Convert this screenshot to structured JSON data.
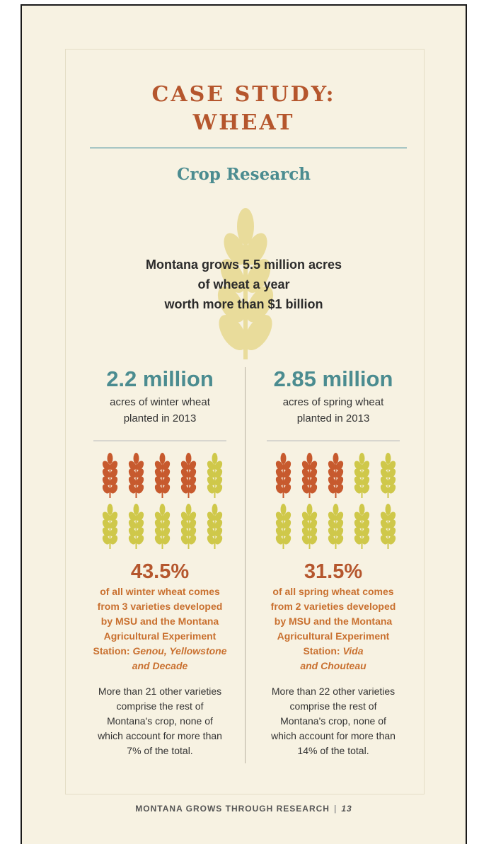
{
  "title": {
    "line1": "CASE STUDY:",
    "line2": "WHEAT"
  },
  "subtitle": "Crop Research",
  "intro": {
    "line1": "Montana grows 5.5 million acres",
    "line2": "of wheat a year",
    "line3": "worth more than $1 billion"
  },
  "winter": {
    "big": "2.2 million",
    "desc_line1": "acres of winter wheat",
    "desc_line2": "planted in 2013",
    "icons_highlighted": 4,
    "icons_total": 10,
    "pct": "43.5%",
    "pct_lines": [
      "of all winter wheat comes",
      "from 3 varieties developed",
      "by MSU and the Montana",
      "Agricultural Experiment"
    ],
    "station_label": "Station: ",
    "varieties_line1": "Genou, Yellowstone",
    "varieties_line2": "and Decade",
    "more_lines": [
      "More than 21 other varieties",
      "comprise the rest of",
      "Montana's crop, none of",
      "which account for more than",
      "7% of the total."
    ]
  },
  "spring": {
    "big": "2.85 million",
    "desc_line1": "acres of spring wheat",
    "desc_line2": "planted in 2013",
    "icons_highlighted": 3,
    "icons_total": 10,
    "pct": "31.5%",
    "pct_lines": [
      "of all spring wheat comes",
      "from 2 varieties developed",
      "by MSU and the Montana",
      "Agricultural Experiment"
    ],
    "station_label": "Station: ",
    "varieties_line1": "Vida",
    "varieties_line2": "and Chouteau",
    "more_lines": [
      "More than 22 other varieties",
      "comprise the rest of",
      "Montana's crop, none of",
      "which account for more than",
      "14% of the total."
    ]
  },
  "footer": {
    "text": "MONTANA GROWS THROUGH RESEARCH",
    "separator": "|",
    "page": "13"
  },
  "colors": {
    "highlight": "#c75a2e",
    "muted": "#cfc84a",
    "title": "#b5562d",
    "teal": "#4b8c90"
  }
}
